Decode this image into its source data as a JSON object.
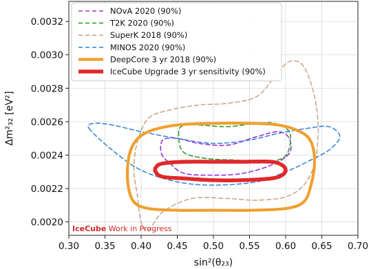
{
  "chart_data": {
    "type": "line",
    "xlabel": "sin²(θ₂₃)",
    "ylabel": "Δm²₃₂ [eV²]",
    "xlim": [
      0.3,
      0.7
    ],
    "ylim": [
      0.00192,
      0.00332
    ],
    "x_ticks": [
      "0.30",
      "0.35",
      "0.40",
      "0.45",
      "0.50",
      "0.55",
      "0.60",
      "0.65",
      "0.70"
    ],
    "y_ticks": [
      "0.0020",
      "0.0022",
      "0.0024",
      "0.0026",
      "0.0028",
      "0.0030",
      "0.0032"
    ],
    "grid": true,
    "legend_position": "top-left",
    "annotation": {
      "brand": "IceCube",
      "text": " Work in Progress",
      "brand_color": "#d62728"
    },
    "series": [
      {
        "name": "NOvA 2020 (90%)",
        "color": "#9b30d9",
        "style": "dashed",
        "contours": [
          [
            [
              0.44,
              0.00235
            ],
            [
              0.46,
              0.00229
            ],
            [
              0.5,
              0.00228
            ],
            [
              0.54,
              0.00229
            ],
            [
              0.58,
              0.00234
            ],
            [
              0.605,
              0.00241
            ],
            [
              0.605,
              0.0025
            ],
            [
              0.59,
              0.00254
            ],
            [
              0.56,
              0.00251
            ],
            [
              0.52,
              0.00246
            ],
            [
              0.48,
              0.00247
            ],
            [
              0.45,
              0.0025
            ],
            [
              0.43,
              0.00249
            ],
            [
              0.428,
              0.00241
            ]
          ]
        ]
      },
      {
        "name": "T2K 2020 (90%)",
        "color": "#2ca02c",
        "style": "dashed",
        "contours": [
          [
            [
              0.452,
              0.00254
            ],
            [
              0.458,
              0.00242
            ],
            [
              0.49,
              0.00238
            ],
            [
              0.53,
              0.00237
            ],
            [
              0.57,
              0.00236
            ],
            [
              0.595,
              0.00238
            ],
            [
              0.605,
              0.00244
            ],
            [
              0.605,
              0.00254
            ],
            [
              0.585,
              0.00259
            ],
            [
              0.56,
              0.00259
            ],
            [
              0.52,
              0.00257
            ],
            [
              0.48,
              0.00258
            ],
            [
              0.46,
              0.00258
            ]
          ]
        ]
      },
      {
        "name": "SuperK 2018 (90%)",
        "color": "#c8a88a",
        "style": "dashed",
        "contours": [
          [
            [
              0.41,
              0.00195
            ],
            [
              0.43,
              0.00206
            ],
            [
              0.47,
              0.00214
            ],
            [
              0.52,
              0.00214
            ],
            [
              0.56,
              0.00213
            ],
            [
              0.6,
              0.00215
            ],
            [
              0.625,
              0.00222
            ],
            [
              0.64,
              0.00235
            ],
            [
              0.645,
              0.00255
            ],
            [
              0.64,
              0.00275
            ],
            [
              0.625,
              0.00293
            ],
            [
              0.605,
              0.00296
            ],
            [
              0.585,
              0.00287
            ],
            [
              0.56,
              0.00275
            ],
            [
              0.52,
              0.00271
            ],
            [
              0.48,
              0.0027
            ],
            [
              0.44,
              0.00267
            ],
            [
              0.41,
              0.00262
            ],
            [
              0.395,
              0.00248
            ],
            [
              0.39,
              0.00232
            ],
            [
              0.395,
              0.00215
            ],
            [
              0.4,
              0.002
            ]
          ]
        ]
      },
      {
        "name": "MINOS 2020 (90%)",
        "color": "#3a87d8",
        "style": "dashed",
        "contours": [
          [
            [
              0.328,
              0.00256
            ],
            [
              0.36,
              0.00243
            ],
            [
              0.4,
              0.00231
            ],
            [
              0.45,
              0.00224
            ],
            [
              0.5,
              0.00222
            ],
            [
              0.56,
              0.00224
            ],
            [
              0.6,
              0.0023
            ],
            [
              0.63,
              0.00236
            ],
            [
              0.66,
              0.00243
            ],
            [
              0.675,
              0.00251
            ],
            [
              0.66,
              0.00257
            ],
            [
              0.63,
              0.00256
            ],
            [
              0.59,
              0.00253
            ],
            [
              0.55,
              0.00249
            ],
            [
              0.5,
              0.00247
            ],
            [
              0.45,
              0.0025
            ],
            [
              0.4,
              0.00254
            ],
            [
              0.36,
              0.00258
            ],
            [
              0.335,
              0.00259
            ]
          ]
        ]
      },
      {
        "name": "DeepCore 3 yr 2018 (90%)",
        "color": "#f0a030",
        "style": "solid-thick",
        "contours": [
          [
            [
              0.382,
              0.00222
            ],
            [
              0.39,
              0.00212
            ],
            [
              0.41,
              0.00208
            ],
            [
              0.45,
              0.00207
            ],
            [
              0.5,
              0.00207
            ],
            [
              0.55,
              0.00207
            ],
            [
              0.6,
              0.00208
            ],
            [
              0.625,
              0.00212
            ],
            [
              0.635,
              0.00222
            ],
            [
              0.64,
              0.00236
            ],
            [
              0.635,
              0.00248
            ],
            [
              0.62,
              0.00254
            ],
            [
              0.59,
              0.00258
            ],
            [
              0.55,
              0.00259
            ],
            [
              0.5,
              0.00259
            ],
            [
              0.45,
              0.00258
            ],
            [
              0.41,
              0.00254
            ],
            [
              0.39,
              0.00247
            ],
            [
              0.382,
              0.00236
            ]
          ]
        ]
      },
      {
        "name": "IceCube Upgrade 3 yr sensitivity (90%)",
        "color": "#e0282a",
        "style": "solid-thicker",
        "contours": [
          [
            [
              0.42,
              0.0023
            ],
            [
              0.43,
              0.00227
            ],
            [
              0.46,
              0.00226
            ],
            [
              0.5,
              0.00225
            ],
            [
              0.54,
              0.00225
            ],
            [
              0.58,
              0.00226
            ],
            [
              0.595,
              0.00228
            ],
            [
              0.6,
              0.00231
            ],
            [
              0.595,
              0.00234
            ],
            [
              0.58,
              0.00236
            ],
            [
              0.54,
              0.00236
            ],
            [
              0.5,
              0.00236
            ],
            [
              0.46,
              0.00236
            ],
            [
              0.43,
              0.00235
            ],
            [
              0.421,
              0.00233
            ]
          ]
        ]
      }
    ]
  }
}
